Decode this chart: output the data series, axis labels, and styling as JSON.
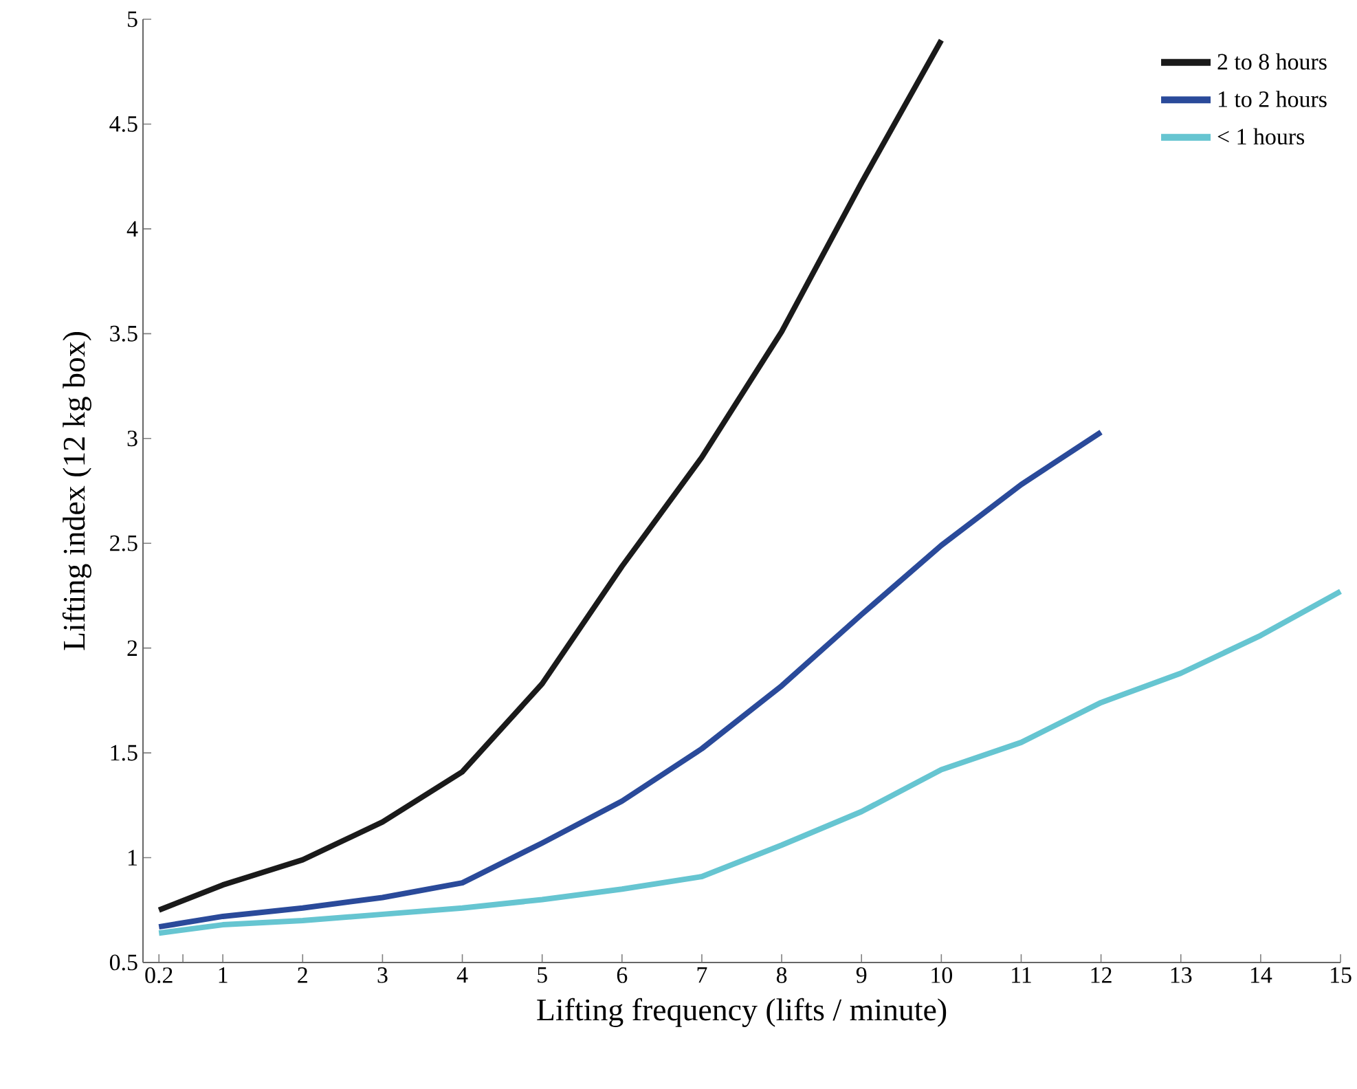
{
  "chart_data": {
    "type": "line",
    "xlabel": "Lifting frequency (lifts / minute)",
    "ylabel": "Lifting index (12 kg box)",
    "xlim": [
      0,
      15
    ],
    "ylim": [
      0.5,
      5
    ],
    "xticks": [
      0.2,
      {
        "value": 0.5,
        "label": null
      },
      1,
      2,
      3,
      4,
      5,
      6,
      7,
      8,
      9,
      10,
      11,
      12,
      13,
      14,
      15
    ],
    "yticks": [
      0.5,
      1,
      1.5,
      2,
      2.5,
      3,
      3.5,
      4,
      4.5,
      5
    ],
    "legend": "top right",
    "grid": false,
    "marker": "none",
    "line_style": "solid",
    "series": [
      {
        "name": "2 to 8 hours",
        "color": "#1a1a1a",
        "x": [
          0.2,
          1,
          2,
          3,
          4,
          5,
          6,
          7,
          8,
          9,
          10
        ],
        "values": [
          0.75,
          0.87,
          0.99,
          1.17,
          1.41,
          1.83,
          2.39,
          2.91,
          3.51,
          4.22,
          4.9
        ]
      },
      {
        "name": "1 to 2 hours",
        "color": "#2a4a9a",
        "x": [
          0.2,
          1,
          2,
          3,
          4,
          5,
          6,
          7,
          8,
          9,
          10,
          11,
          12
        ],
        "values": [
          0.67,
          0.72,
          0.76,
          0.81,
          0.88,
          1.07,
          1.27,
          1.52,
          1.82,
          2.16,
          2.49,
          2.78,
          3.03
        ]
      },
      {
        "name": "< 1 hours",
        "color": "#66c5d1",
        "x": [
          0.2,
          1,
          2,
          3,
          4,
          5,
          6,
          7,
          8,
          9,
          10,
          11,
          12,
          13,
          14,
          15
        ],
        "values": [
          0.64,
          0.68,
          0.7,
          0.73,
          0.76,
          0.8,
          0.85,
          0.91,
          1.06,
          1.22,
          1.42,
          1.55,
          1.74,
          1.88,
          2.06,
          2.27
        ]
      }
    ]
  }
}
